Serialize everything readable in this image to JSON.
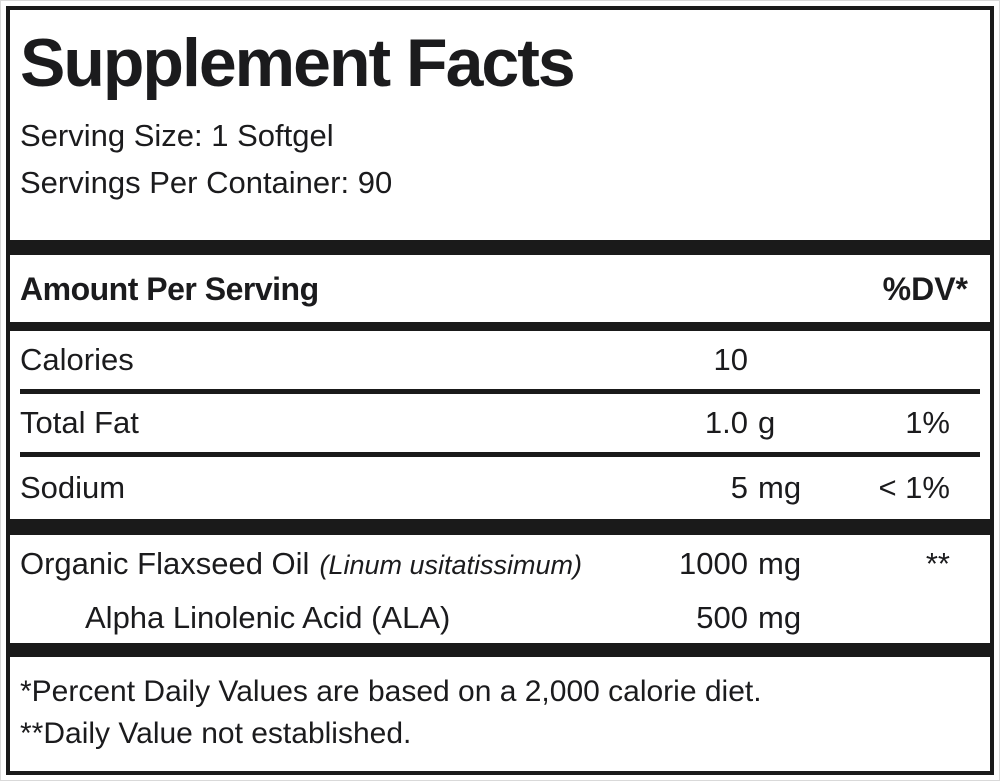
{
  "title": "Supplement Facts",
  "serving": {
    "size": "Serving Size: 1 Softgel",
    "per_container": "Servings Per Container: 90"
  },
  "header": {
    "amount": "Amount Per Serving",
    "dv": "%DV*"
  },
  "nutrients": [
    {
      "name": "Calories",
      "amount": "10",
      "unit": "",
      "dv": ""
    },
    {
      "name": "Total Fat",
      "amount": "1.0",
      "unit": "g",
      "dv": "1%"
    },
    {
      "name": "Sodium",
      "amount": "5",
      "unit": "mg",
      "dv": "< 1%"
    }
  ],
  "ingredients": [
    {
      "name": "Organic Flaxseed Oil",
      "latin": "(Linum usitatissimum)",
      "amount": "1000",
      "unit": "mg",
      "dv": "**"
    },
    {
      "name": "Alpha Linolenic Acid (ALA)",
      "latin": "",
      "amount": "500",
      "unit": "mg",
      "dv": ""
    }
  ],
  "footnotes": [
    "*Percent Daily Values are based on a 2,000 calorie diet.",
    "**Daily Value not established."
  ],
  "colors": {
    "text": "#1b1b1d",
    "rule": "#1a1a1a",
    "background": "#ffffff"
  }
}
